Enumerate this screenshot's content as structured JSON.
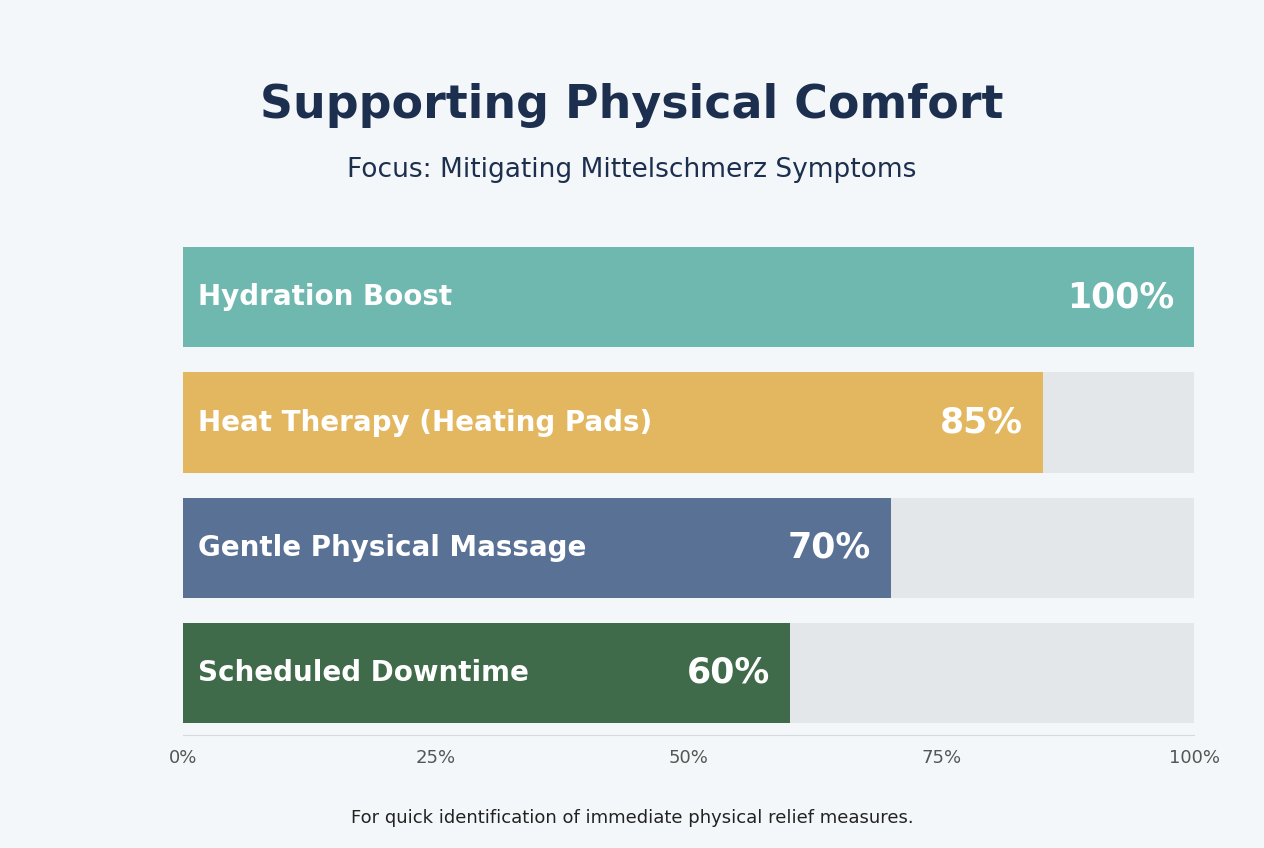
{
  "chart_data": {
    "type": "bar",
    "orientation": "horizontal",
    "title": "Supporting Physical Comfort",
    "subtitle": "Focus: Mitigating Mittelschmerz Symptoms",
    "annotation": "For quick identification of immediate physical relief measures.",
    "categories": [
      "Hydration Boost",
      "Heat Therapy (Heating Pads)",
      "Gentle Physical Massage",
      "Scheduled Downtime"
    ],
    "values": [
      100,
      85,
      70,
      60
    ],
    "value_labels": [
      "100%",
      "85%",
      "70%",
      "60%"
    ],
    "colors": [
      "#6fb8b0",
      "#e3b75f",
      "#5a7196",
      "#3f6b4a"
    ],
    "xlim": [
      0,
      100
    ],
    "xticks": [
      {
        "value": 0,
        "label": "0%"
      },
      {
        "value": 25,
        "label": "25%"
      },
      {
        "value": 50,
        "label": "50%"
      },
      {
        "value": 75,
        "label": "75%"
      },
      {
        "value": 100,
        "label": "100%"
      }
    ],
    "grid": false,
    "data_labels": true
  }
}
